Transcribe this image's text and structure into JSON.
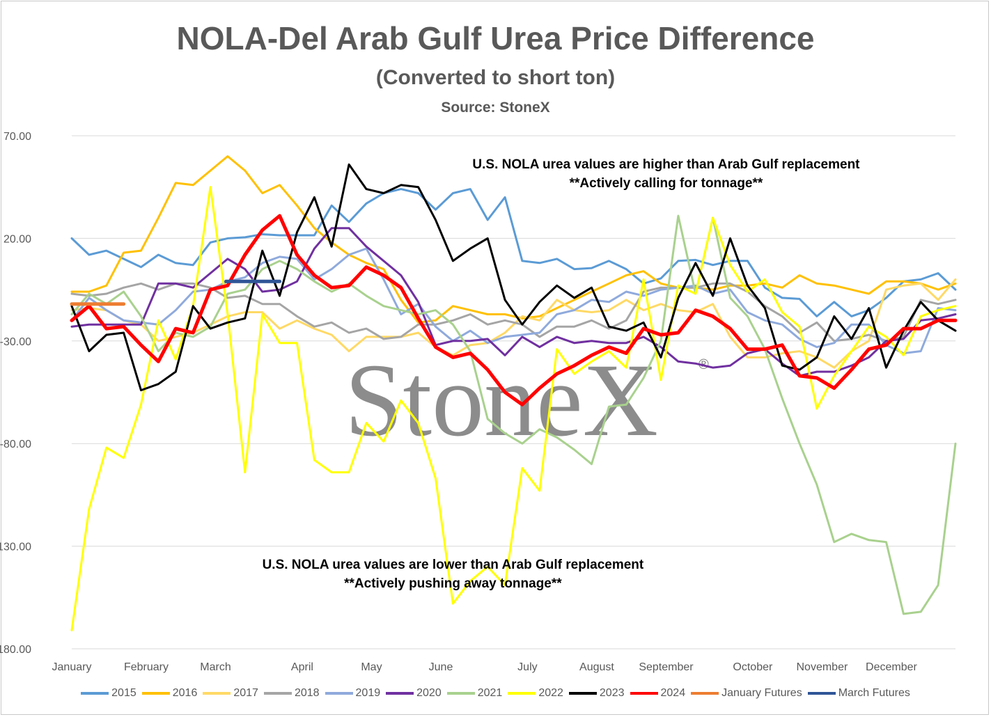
{
  "title": "NOLA-Del Arab Gulf Urea Price Difference",
  "subtitle": "(Converted to short ton)",
  "source": "Source: StoneX",
  "watermark": "StoneX",
  "chart_data": {
    "type": "line",
    "title": "NOLA-Del Arab Gulf Urea Price Difference",
    "subtitle": "(Converted to short ton)",
    "ylim": [
      -180,
      70
    ],
    "y_ticks": [
      "70.00",
      "20.00",
      "-30.00",
      "-80.00",
      "-130.00",
      "-180.00"
    ],
    "y_tick_values": [
      70,
      20,
      -30,
      -80,
      -130,
      -180
    ],
    "x_range": [
      0,
      51
    ],
    "x_ticks": [
      {
        "label": "January",
        "week": 0
      },
      {
        "label": "February",
        "week": 4.3
      },
      {
        "label": "March",
        "week": 8.3
      },
      {
        "label": "April",
        "week": 13.3
      },
      {
        "label": "May",
        "week": 17.3
      },
      {
        "label": "June",
        "week": 21.3
      },
      {
        "label": "July",
        "week": 26.3
      },
      {
        "label": "August",
        "week": 30.3
      },
      {
        "label": "September",
        "week": 34.3
      },
      {
        "label": "October",
        "week": 39.3
      },
      {
        "label": "November",
        "week": 43.3
      },
      {
        "label": "December",
        "week": 47.3
      }
    ],
    "grid": true,
    "legend_position": "bottom",
    "annotations": [
      {
        "lines": [
          "U.S. NOLA urea values are higher than Arab Gulf replacement",
          "**Actively calling for tonnage**"
        ],
        "week": 34.3,
        "y": 54
      },
      {
        "lines": [
          "U.S. NOLA urea values are lower than Arab Gulf replacement",
          "**Actively pushing away tonnage**"
        ],
        "week": 22,
        "y": -141
      }
    ],
    "series": [
      {
        "name": "2015",
        "color": "#5b9bd5",
        "width": 3,
        "values": [
          20,
          12,
          14,
          10,
          6,
          12,
          8,
          7,
          18,
          20,
          20.5,
          22,
          21.5,
          21.5,
          21.5,
          36,
          28,
          37,
          42,
          44,
          42,
          34,
          42,
          44,
          29,
          40,
          9,
          8,
          10,
          5,
          5.5,
          9,
          5,
          -2,
          0.5,
          9,
          9.5,
          7,
          9,
          9,
          -4,
          -9,
          -9.5,
          -18,
          -11,
          -18,
          -15,
          -9,
          -1,
          0,
          3,
          -5
        ]
      },
      {
        "name": "2016",
        "color": "#ffc000",
        "width": 3,
        "values": [
          -6,
          -6,
          -3,
          13,
          14,
          30,
          47,
          46,
          53,
          60,
          53,
          42,
          46,
          36,
          25,
          18,
          12,
          8,
          5,
          -10,
          -21,
          -20,
          -13,
          -15,
          -17,
          -17,
          -19,
          -18,
          -14,
          -10,
          -6,
          -2,
          2,
          4,
          -2,
          -4,
          -4,
          -5,
          -3,
          -3,
          -2,
          -4,
          2,
          -2,
          -3,
          -5,
          -7,
          -1,
          -1,
          -2,
          -5,
          -2
        ]
      },
      {
        "name": "2017",
        "color": "#ffd966",
        "width": 3,
        "values": [
          -15,
          -14,
          -15,
          -20,
          -22,
          -30,
          -28,
          -26,
          -22,
          -18,
          -16,
          -16,
          -24,
          -20,
          -24,
          -27,
          -35,
          -28,
          -28,
          -28,
          -26,
          -33,
          -37,
          -32,
          -31,
          -26,
          -18,
          -20,
          -10,
          -15,
          -16,
          -15,
          -10,
          -15,
          -12,
          -15,
          -16,
          -12,
          -28,
          -38,
          -38,
          -36,
          -35,
          -38,
          -43,
          -35,
          -30,
          -5,
          -3,
          -2,
          -10,
          0
        ]
      },
      {
        "name": "2018",
        "color": "#a5a5a5",
        "width": 3,
        "values": [
          -7,
          -8,
          -7,
          -4,
          -2,
          -5,
          -2,
          -2,
          -4,
          -9,
          -8,
          -12,
          -12,
          -18,
          -23,
          -21,
          -26,
          -24,
          -29,
          -28,
          -22,
          -22,
          -20,
          -17,
          -22,
          -20,
          -22,
          -28,
          -23,
          -23,
          -20,
          -24,
          -20,
          -6,
          -4,
          -4,
          -4,
          -2,
          -2,
          -6,
          -13,
          -18,
          -26,
          -21,
          -30,
          -29,
          -27,
          -30,
          -28,
          -10,
          -12,
          -10
        ]
      },
      {
        "name": "2019",
        "color": "#8faadc",
        "width": 3,
        "values": [
          -20,
          -9,
          -15,
          -20,
          -21,
          -22,
          -15,
          -6,
          -5,
          -1,
          1,
          8,
          11,
          10,
          0,
          5,
          12,
          15,
          0,
          -17,
          -12,
          -23,
          -30,
          -25,
          -31,
          -28,
          -27,
          -26,
          -17,
          -15,
          -10,
          -11,
          -6,
          -8,
          -5,
          -4,
          -3,
          -7,
          -5,
          -16,
          -20,
          -22,
          -29,
          -33,
          -31,
          -22,
          -22,
          -32,
          -36,
          -35,
          -14,
          -15
        ]
      },
      {
        "name": "2020",
        "color": "#7030a0",
        "width": 3,
        "values": [
          -23,
          -22,
          -22,
          -22,
          -22,
          -2,
          -2,
          -4,
          3,
          10,
          5,
          -6,
          -5,
          -1,
          15,
          25,
          25,
          16,
          9,
          2,
          -11,
          -32,
          -30,
          -30,
          -29,
          -37,
          -28,
          -33,
          -28,
          -31,
          -30,
          -31,
          -31,
          -28,
          -33,
          -40,
          -41,
          -43,
          -42,
          -36,
          -34,
          -41,
          -47,
          -45,
          -45,
          -42,
          -38,
          -30,
          -29,
          -20,
          -19,
          -17
        ]
      },
      {
        "name": "2021",
        "color": "#a9d18e",
        "width": 3,
        "values": [
          -17,
          -7,
          -12,
          -6,
          -18,
          -35,
          -26,
          -28,
          -23,
          -7,
          -5,
          5,
          9,
          5,
          -1,
          -6,
          -2,
          -8,
          -13,
          -15,
          -17,
          -15,
          -22,
          -35,
          -68,
          -75,
          -80,
          -73,
          -77,
          -83,
          -90,
          -62,
          -61,
          -48,
          -30,
          31,
          -7,
          30,
          -9,
          -18,
          -34,
          -58,
          -80,
          -100,
          -128,
          -124,
          -127,
          -128,
          -163,
          -162,
          -149,
          -80
        ]
      },
      {
        "name": "2022",
        "color": "#ffff00",
        "width": 3,
        "values": [
          -171,
          -112,
          -82,
          -87,
          -61,
          -20,
          -39,
          -13,
          45,
          -17,
          -94,
          -17,
          -31,
          -31,
          -88,
          -94,
          -94,
          -70,
          -79,
          -59,
          -70,
          -97,
          -158,
          -147,
          -140,
          -149,
          -92,
          -103,
          -34,
          -46,
          -40,
          -35,
          -43,
          0,
          -49,
          -3,
          -7,
          30,
          7,
          -6,
          0,
          -16,
          -23,
          -63,
          -47,
          -35,
          -23,
          -28,
          -37,
          -18,
          -15,
          -13
        ]
      },
      {
        "name": "2023",
        "color": "#000000",
        "width": 3,
        "values": [
          -13,
          -35,
          -27,
          -26,
          -54,
          -51,
          -45,
          -13,
          -24,
          -21,
          -19,
          14,
          -8,
          23,
          40,
          16,
          56,
          44,
          42,
          46,
          45,
          29,
          9,
          15,
          20,
          -10,
          -22,
          -11,
          -3,
          -9,
          -4,
          -23,
          -25,
          -21,
          -38,
          -9,
          8,
          -8,
          20,
          -3,
          -14,
          -42,
          -44,
          -38,
          -18,
          -29,
          -14,
          -43,
          -25,
          -11,
          -20,
          -25
        ]
      },
      {
        "name": "2024",
        "color": "#ff0000",
        "width": 5,
        "values": [
          -20,
          -13,
          -24,
          -23,
          -32,
          -40,
          -24,
          -26,
          -5,
          -3,
          12,
          24,
          31,
          12,
          2,
          -4,
          -3,
          6,
          2,
          -4,
          -19,
          -33,
          -38,
          -36,
          -44,
          -55,
          -61,
          -53,
          -46,
          -42,
          -37,
          -33,
          -36,
          -24,
          -27,
          -26,
          -15,
          -18,
          -24,
          -34,
          -34,
          -32,
          -47,
          -48,
          -53,
          -44,
          -34,
          -32,
          -24,
          -24,
          -20,
          -20
        ]
      },
      {
        "name": "January Futures",
        "color": "#ed7d31",
        "width": 5,
        "points": [
          [
            0,
            -12
          ],
          [
            3,
            -12
          ]
        ]
      },
      {
        "name": "March Futures",
        "color": "#2f5597",
        "width": 5,
        "points": [
          [
            8.9,
            -1
          ],
          [
            12,
            -1
          ]
        ]
      }
    ]
  }
}
